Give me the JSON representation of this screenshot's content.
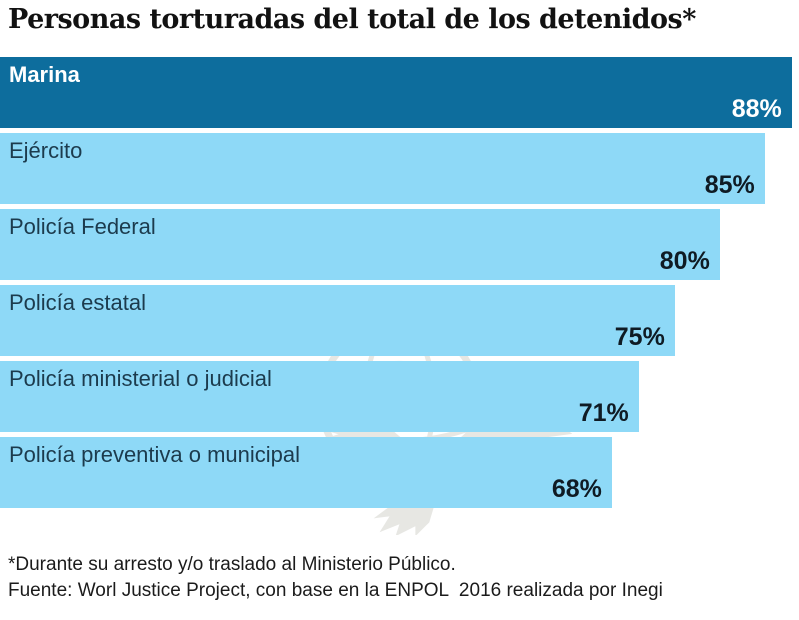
{
  "title": "Personas torturadas del total de los detenidos*",
  "chart_data": {
    "type": "bar",
    "orientation": "horizontal",
    "title": "Personas torturadas del total de los detenidos*",
    "categories": [
      "Marina",
      "Ejército",
      "Policía Federal",
      "Policía estatal",
      "Policía ministerial o judicial",
      "Policía preventiva o municipal"
    ],
    "values": [
      88,
      85,
      80,
      75,
      71,
      68
    ],
    "value_labels": [
      "88%",
      "85%",
      "80%",
      "75%",
      "71%",
      "68%"
    ],
    "xlim": [
      0,
      88.8
    ],
    "highlight_index": 0,
    "grid": false,
    "legend": false,
    "axis_ticks": "none",
    "colors": {
      "highlight_bar": "#0d6d9d",
      "bar": "#8ed9f7",
      "text_on_highlight": "#ffffff",
      "label_on_bar": "#1c3b4d",
      "value_on_bar": "#0f1b24"
    }
  },
  "footer": {
    "footnote": "*Durante su arresto y/o traslado al Ministerio Público.",
    "source": "Fuente: Worl Justice Project, con base en la ENPOL  2016 realizada por Inegi"
  },
  "watermark_icon": "eagle-globe-logo"
}
